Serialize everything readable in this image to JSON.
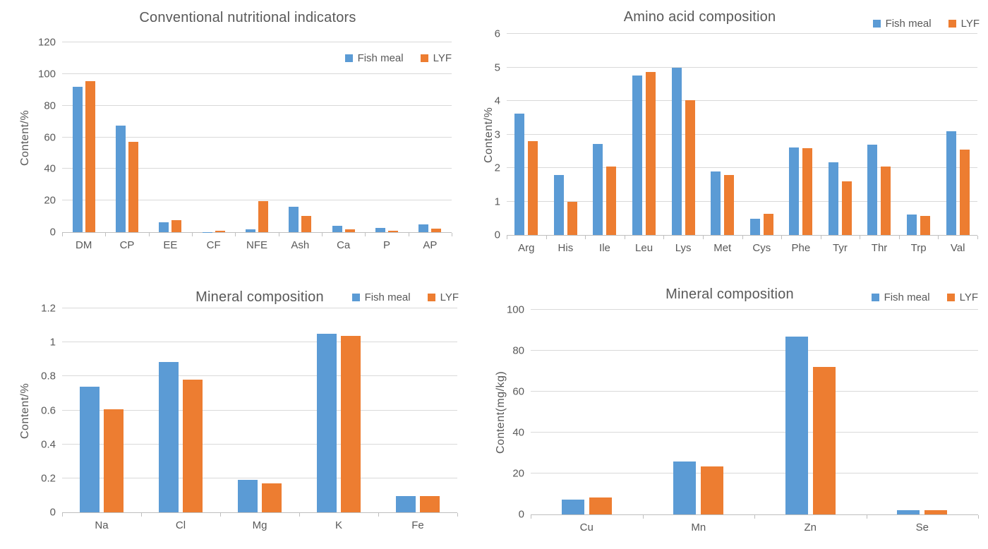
{
  "page": {
    "background": "#FFFFFF"
  },
  "colors": {
    "fish_meal": "#5B9BD5",
    "lyf": "#ED7D31",
    "gridline": "#D9D9D9",
    "axis_line": "#BFBFBF",
    "text": "#595959"
  },
  "chart_data": [
    {
      "type": "bar",
      "title": "Conventional nutritional indicators",
      "ylabel": "Content/%",
      "xlabel": "",
      "ylim": [
        0,
        120
      ],
      "ytick_labels": [
        "0",
        "20",
        "40",
        "60",
        "80",
        "100",
        "120"
      ],
      "grid": true,
      "legend_position": "inside-top-right",
      "categories": [
        "DM",
        "CP",
        "EE",
        "CF",
        "NFE",
        "Ash",
        "Ca",
        "P",
        "AP"
      ],
      "series": [
        {
          "name": "Fish meal",
          "color": "#5B9BD5",
          "values": [
            92,
            67.2,
            6.3,
            0.1,
            1.8,
            16.1,
            3.9,
            2.8,
            4.7
          ]
        },
        {
          "name": "LYF",
          "color": "#ED7D31",
          "values": [
            95.6,
            57,
            7.4,
            1.0,
            19.8,
            10.4,
            2.0,
            1.1,
            2.2
          ]
        }
      ]
    },
    {
      "type": "bar",
      "title": "Amino acid composition",
      "ylabel": "Content/%",
      "xlabel": "",
      "ylim": [
        0,
        6
      ],
      "ytick_labels": [
        "0",
        "1",
        "2",
        "3",
        "4",
        "5",
        "6"
      ],
      "grid": true,
      "legend_position": "top-right",
      "categories": [
        "Arg",
        "His",
        "Ile",
        "Leu",
        "Lys",
        "Met",
        "Cys",
        "Phe",
        "Tyr",
        "Thr",
        "Trp",
        "Val"
      ],
      "series": [
        {
          "name": "Fish meal",
          "color": "#5B9BD5",
          "values": [
            3.63,
            1.78,
            2.72,
            4.75,
            4.98,
            1.89,
            0.49,
            2.62,
            2.16,
            2.7,
            0.62,
            3.1
          ]
        },
        {
          "name": "LYF",
          "color": "#ED7D31",
          "values": [
            2.81,
            1.0,
            2.04,
            4.86,
            4.02,
            1.78,
            0.64,
            2.6,
            1.59,
            2.04,
            0.57,
            2.54
          ]
        }
      ]
    },
    {
      "type": "bar",
      "title": "Mineral composition",
      "ylabel": "Content/%",
      "xlabel": "",
      "ylim": [
        0,
        1.2
      ],
      "ytick_labels": [
        "0",
        "0.2",
        "0.4",
        "0.6",
        "0.8",
        "1",
        "1.2"
      ],
      "grid": true,
      "legend_position": "top-right",
      "categories": [
        "Na",
        "Cl",
        "Mg",
        "K",
        "Fe"
      ],
      "series": [
        {
          "name": "Fish meal",
          "color": "#5B9BD5",
          "values": [
            0.74,
            0.885,
            0.19,
            1.05,
            0.095
          ]
        },
        {
          "name": "LYF",
          "color": "#ED7D31",
          "values": [
            0.605,
            0.78,
            0.17,
            1.04,
            0.095
          ]
        }
      ]
    },
    {
      "type": "bar",
      "title": "Mineral composition",
      "ylabel": "Content(mg/kg)",
      "xlabel": "",
      "ylim": [
        0,
        100
      ],
      "ytick_labels": [
        "0",
        "20",
        "40",
        "60",
        "80",
        "100"
      ],
      "grid": true,
      "legend_position": "top-right",
      "categories": [
        "Cu",
        "Mn",
        "Zn",
        "Se"
      ],
      "series": [
        {
          "name": "Fish meal",
          "color": "#5B9BD5",
          "values": [
            7.2,
            26,
            87,
            2
          ]
        },
        {
          "name": "LYF",
          "color": "#ED7D31",
          "values": [
            8.3,
            23.4,
            72,
            2
          ]
        }
      ]
    }
  ]
}
